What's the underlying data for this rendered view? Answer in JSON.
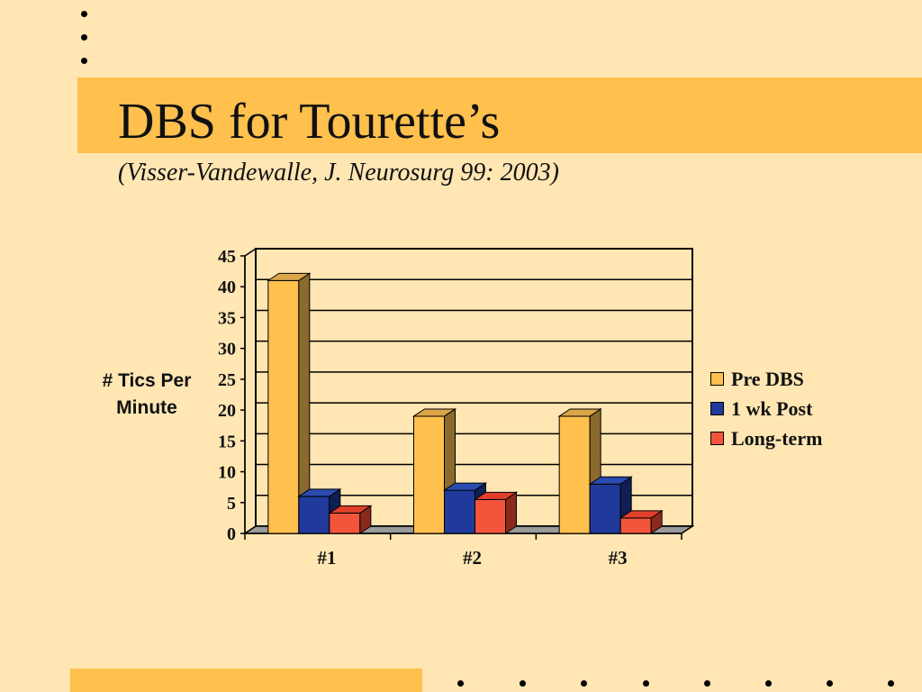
{
  "slide": {
    "title": "DBS for Tourette’s",
    "subtitle": "(Visser-Vandewalle, J. Neurosurg 99: 2003)"
  },
  "colors": {
    "background": "#FFE6B3",
    "accent_band": "#FFC04D"
  },
  "chart_data": {
    "type": "bar",
    "three_d": true,
    "categories": [
      "#1",
      "#2",
      "#3"
    ],
    "series": [
      {
        "name": "Pre DBS",
        "values": [
          41,
          19,
          19
        ],
        "color": "#FFC04D",
        "side": "#8B6A2E",
        "top": "#D9A548"
      },
      {
        "name": "1 wk Post",
        "values": [
          6,
          7,
          8
        ],
        "color": "#1F3A9A",
        "side": "#0F1E55",
        "top": "#2A4BB0"
      },
      {
        "name": "Long-term",
        "values": [
          3.3,
          5.5,
          2.5
        ],
        "color": "#F2553A",
        "side": "#8A2A1E",
        "top": "#E0402A"
      }
    ],
    "ylabel": "# Tics Per\nMinute",
    "xlabel": "",
    "ylim": [
      0,
      45
    ],
    "yticks": [
      0,
      5,
      10,
      15,
      20,
      25,
      30,
      35,
      40,
      45
    ],
    "grid": true,
    "legend_position": "right"
  }
}
